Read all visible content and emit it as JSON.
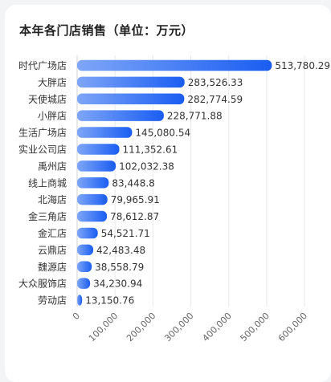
{
  "chart_data": {
    "type": "bar",
    "orientation": "horizontal",
    "title": "本年各门店销售（单位：万元）",
    "categories": [
      "时代广场店",
      "大胖店",
      "天使城店",
      "小胖店",
      "生活广场店",
      "实业公司店",
      "禹州店",
      "线上商城",
      "北海店",
      "金三角店",
      "金汇店",
      "云鼎店",
      "魏源店",
      "大众服饰店",
      "劳动店"
    ],
    "values": [
      513780.29,
      283526.33,
      282774.59,
      228771.88,
      145080.54,
      111352.61,
      102032.38,
      83448.8,
      79965.91,
      78612.87,
      54521.71,
      42483.48,
      38558.79,
      34230.94,
      13150.76
    ],
    "value_labels": [
      "513,780.29",
      "283,526.33",
      "282,774.59",
      "228,771.88",
      "145,080.54",
      "111,352.61",
      "102,032.38",
      "83,448.8",
      "79,965.91",
      "78,612.87",
      "54,521.71",
      "42,483.48",
      "38,558.79",
      "34,230.94",
      "13,150.76"
    ],
    "xlim": [
      0,
      600000
    ],
    "xticks": [
      0,
      100000,
      200000,
      300000,
      400000,
      500000,
      600000
    ],
    "xtick_labels": [
      "0",
      "100,000",
      "200,000",
      "300,000",
      "400,000",
      "500,000",
      "600,000"
    ],
    "grid": true,
    "colors": {
      "bar_start": "#7ea6f8",
      "bar_end": "#1a5df2"
    }
  }
}
